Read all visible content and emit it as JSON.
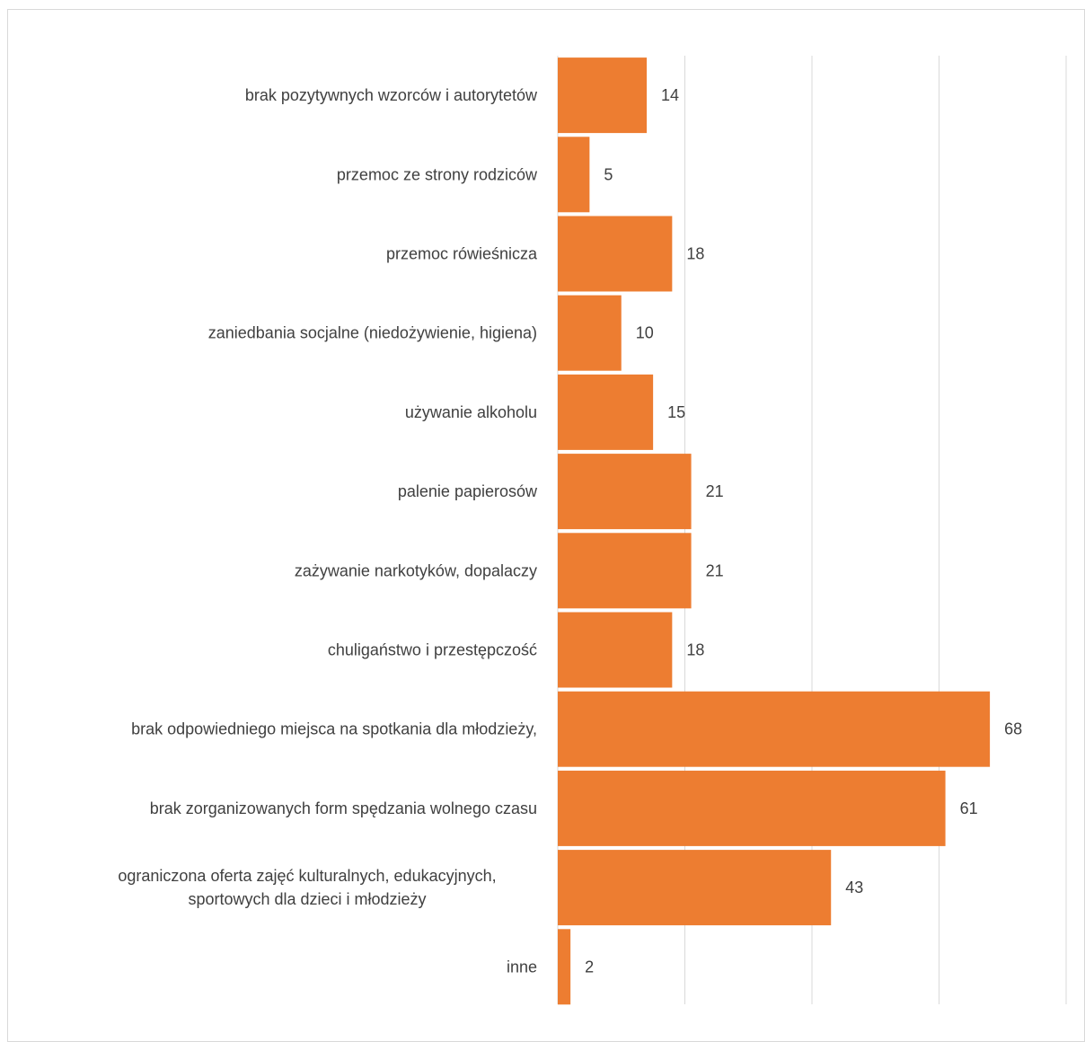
{
  "chart_data": {
    "type": "bar",
    "orientation": "horizontal",
    "title": "",
    "xlabel": "",
    "ylabel": "",
    "xlim": [
      0,
      80
    ],
    "grid": true,
    "legend": "none",
    "bar_color": "#ED7D31",
    "gridline_color": "#d9d9d9",
    "categories": [
      "brak pozytywnych wzorców i autorytetów",
      "przemoc ze strony rodziców",
      "przemoc rówieśnicza",
      "zaniedbania socjalne (niedożywienie, higiena)",
      "używanie alkoholu",
      "palenie papierosów",
      "zażywanie narkotyków, dopalaczy",
      "chuligaństwo i przestępczość",
      "brak odpowiedniego miejsca na spotkania dla młodzieży,",
      "brak zorganizowanych form spędzania wolnego czasu",
      "ograniczona oferta zajęć kulturalnych, edukacyjnych,\nsportowych dla dzieci i młodzieży",
      "inne"
    ],
    "values": [
      14,
      5,
      18,
      10,
      15,
      21,
      21,
      18,
      68,
      61,
      43,
      2
    ],
    "data_labels": [
      "14",
      "5",
      "18",
      "10",
      "15",
      "21",
      "21",
      "18",
      "68",
      "61",
      "43",
      "2"
    ]
  }
}
